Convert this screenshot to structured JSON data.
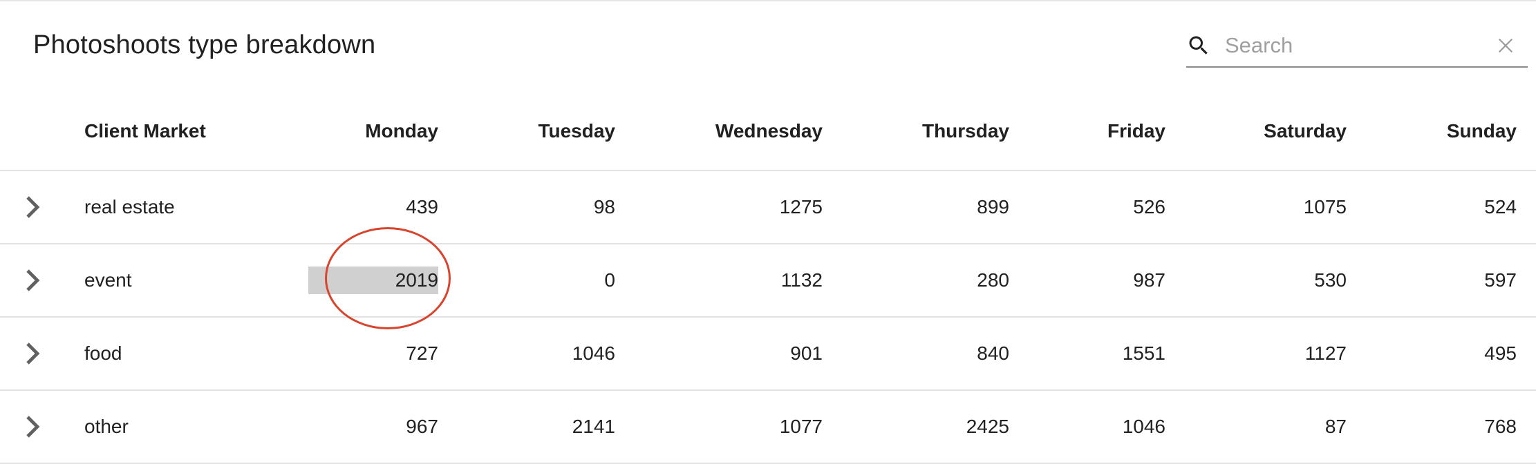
{
  "title": "Photoshoots type breakdown",
  "search": {
    "placeholder": "Search",
    "value": "",
    "icon": "search-icon",
    "clear_icon": "close-icon"
  },
  "table": {
    "columns": [
      "Client Market",
      "Monday",
      "Tuesday",
      "Wednesday",
      "Thursday",
      "Friday",
      "Saturday",
      "Sunday"
    ],
    "rows": [
      {
        "market": "real estate",
        "values": [
          "439",
          "98",
          "1275",
          "899",
          "526",
          "1075",
          "524"
        ]
      },
      {
        "market": "event",
        "values": [
          "2019",
          "0",
          "1132",
          "280",
          "987",
          "530",
          "597"
        ]
      },
      {
        "market": "food",
        "values": [
          "727",
          "1046",
          "901",
          "840",
          "1551",
          "1127",
          "495"
        ]
      },
      {
        "market": "other",
        "values": [
          "967",
          "2141",
          "1077",
          "2425",
          "1046",
          "87",
          "768"
        ]
      }
    ]
  },
  "colors": {
    "highlight": "#d0d0d0",
    "annotation": "#d8452f",
    "divider": "#e2e2e2"
  }
}
